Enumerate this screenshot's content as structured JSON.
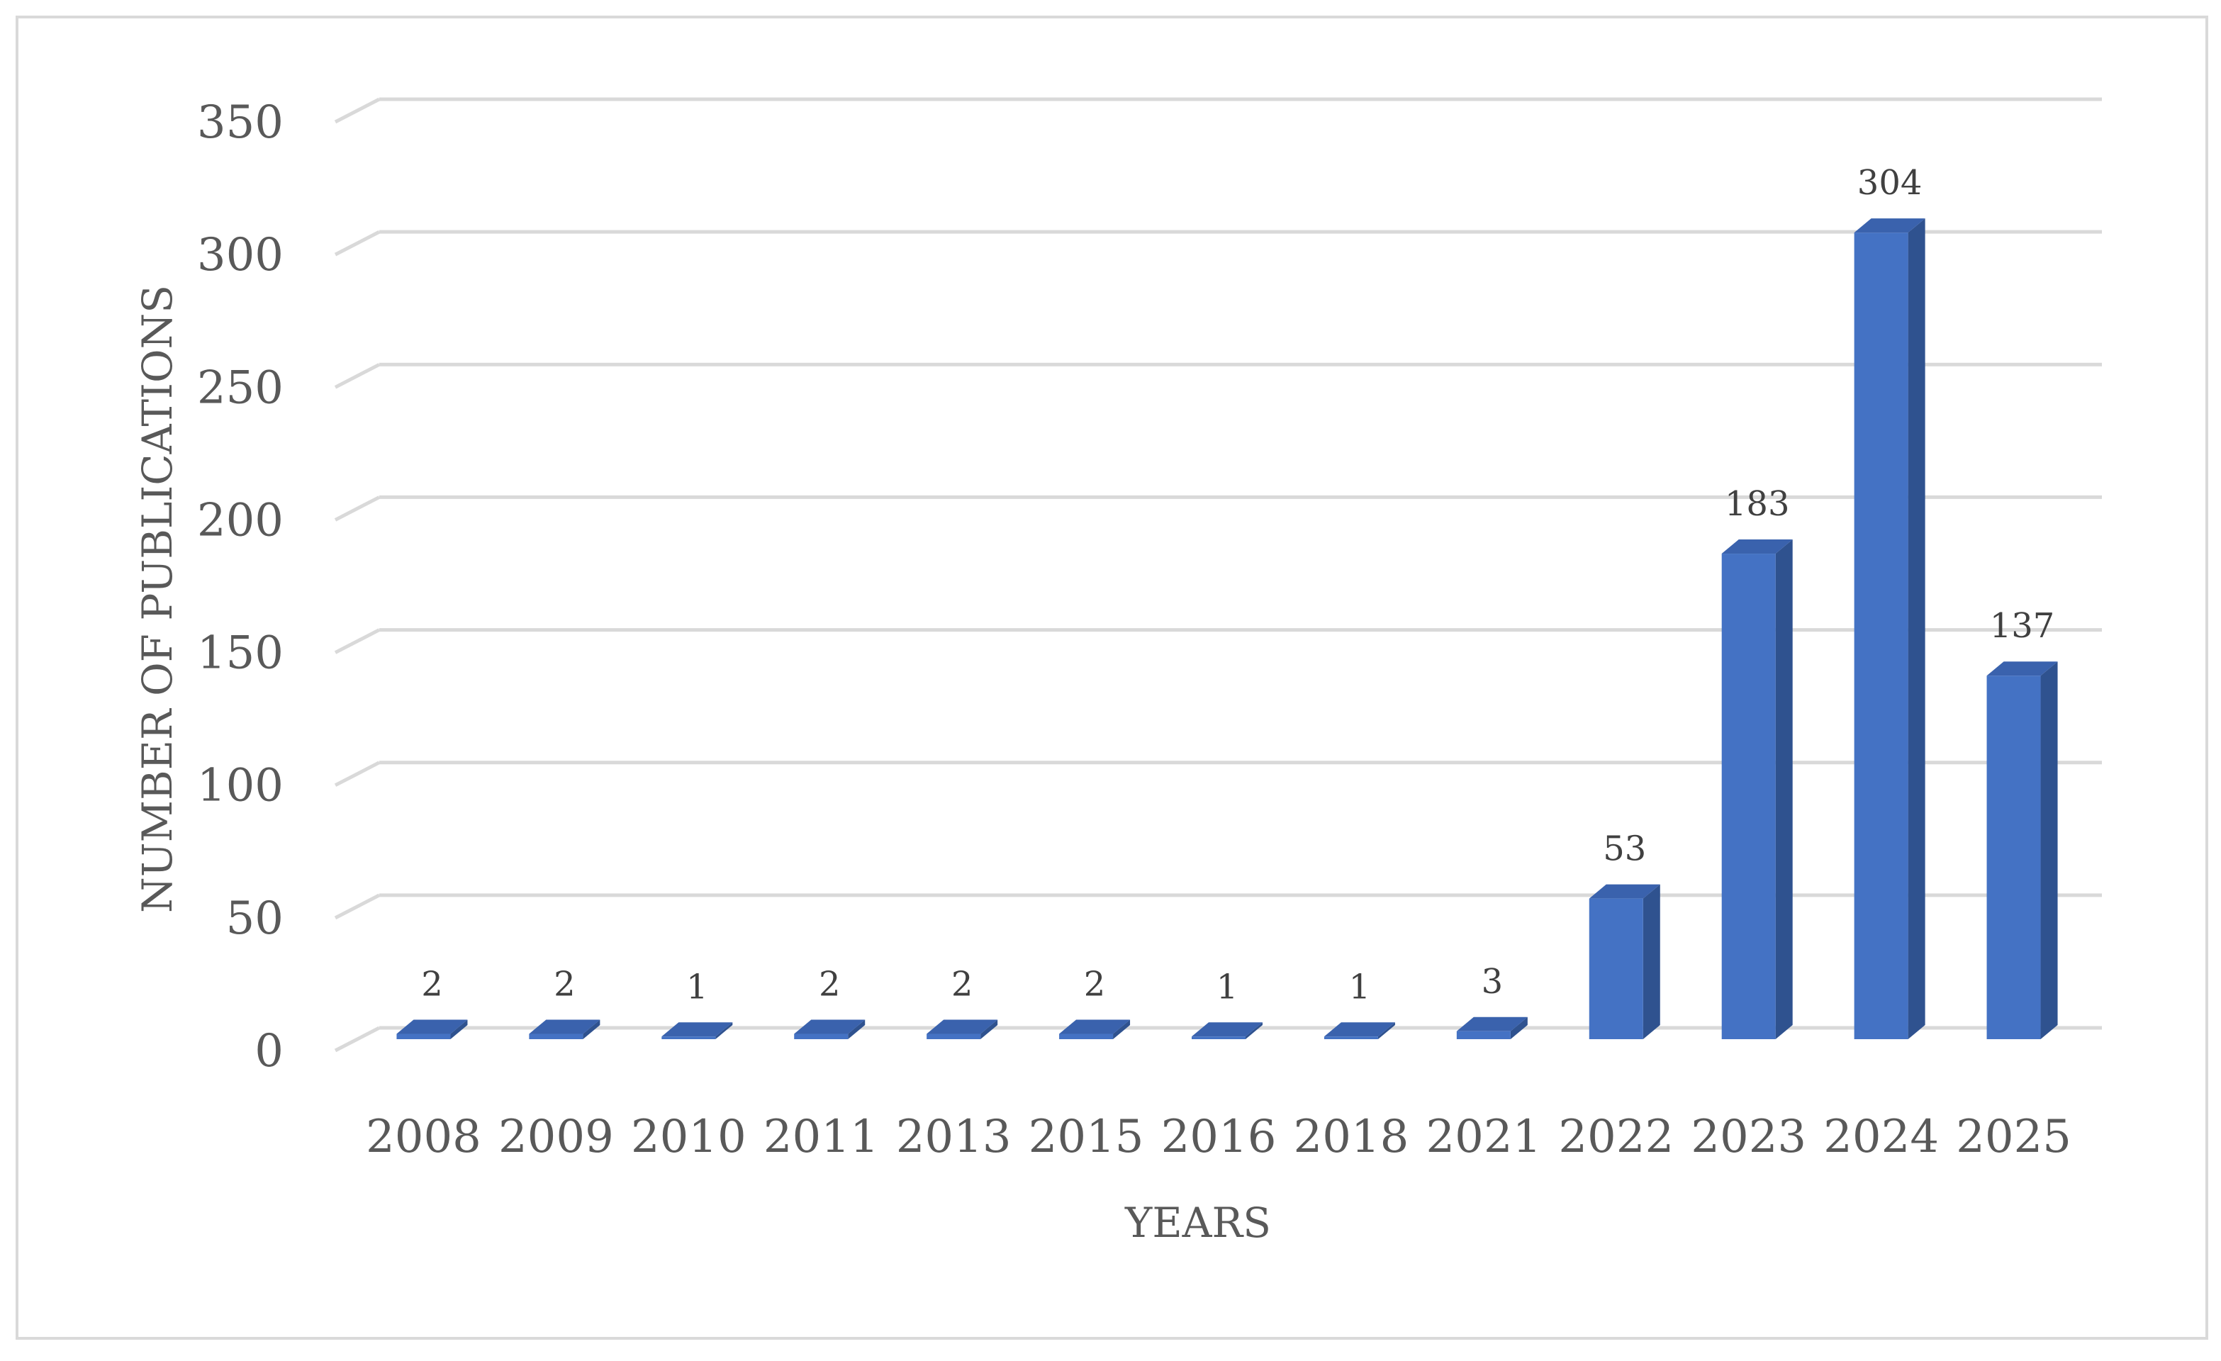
{
  "chart_data": {
    "type": "bar",
    "categories": [
      "2008",
      "2009",
      "2010",
      "2011",
      "2013",
      "2015",
      "2016",
      "2018",
      "2021",
      "2022",
      "2023",
      "2024",
      "2025"
    ],
    "values": [
      2,
      2,
      1,
      2,
      2,
      2,
      1,
      1,
      3,
      53,
      183,
      304,
      137
    ],
    "data_labels": [
      "2",
      "2",
      "1",
      "2",
      "2",
      "2",
      "1",
      "1",
      "3",
      "53",
      "183",
      "304",
      "137"
    ],
    "xlabel": "YEARS",
    "ylabel": "NUMBER OF PUBLICATIONS",
    "ylim": [
      0,
      350
    ],
    "yticks": [
      "0",
      "50",
      "100",
      "150",
      "200",
      "250",
      "300",
      "350"
    ],
    "grid": true,
    "legend": "none",
    "style": "3d-column",
    "colors": {
      "bar_front": "#4472c4",
      "bar_side": "#2f528f",
      "bar_top": "#3a62ad",
      "grid": "#d9d9d9",
      "text": "#595959"
    }
  }
}
